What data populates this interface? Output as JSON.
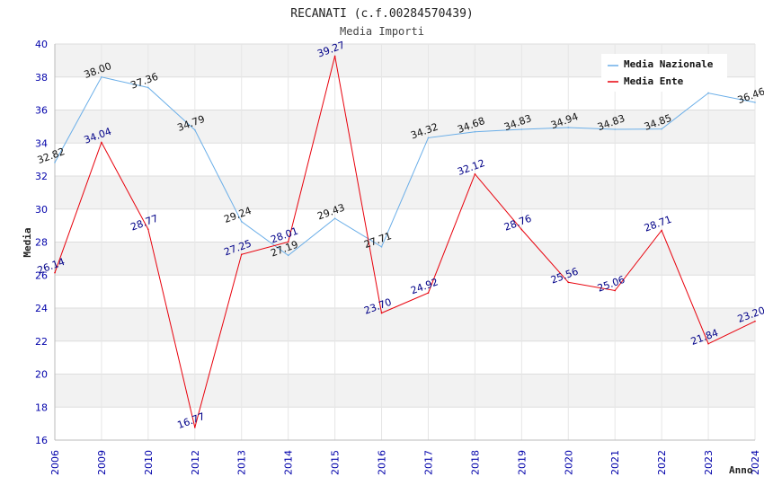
{
  "chart_data": {
    "type": "line",
    "title": "RECANATI (c.f.00284570439)",
    "subtitle": "Media Importi",
    "xlabel": "Anno",
    "ylabel": "Media",
    "ylim": [
      16,
      40
    ],
    "yticks": [
      16,
      18,
      20,
      22,
      24,
      26,
      28,
      30,
      32,
      34,
      36,
      38,
      40
    ],
    "categories": [
      "2006",
      "2009",
      "2010",
      "2012",
      "2013",
      "2014",
      "2015",
      "2016",
      "2017",
      "2018",
      "2019",
      "2020",
      "2021",
      "2022",
      "2023",
      "2024"
    ],
    "series": [
      {
        "name": "Media Nazionale",
        "color": "#6aaee8",
        "values": [
          32.82,
          38.0,
          37.36,
          34.79,
          29.24,
          27.19,
          29.43,
          27.71,
          34.32,
          34.68,
          34.83,
          34.94,
          34.83,
          34.85,
          37.03,
          36.46
        ],
        "labels": [
          "32.82",
          "38.00",
          "37.36",
          "34.79",
          "29.24",
          "27.19",
          "29.43",
          "27.71",
          "34.32",
          "34.68",
          "34.83",
          "34.94",
          "34.83",
          "34.85",
          "",
          "36.46"
        ]
      },
      {
        "name": "Media Ente",
        "color": "#e8000b",
        "values": [
          26.14,
          34.04,
          28.77,
          16.77,
          27.25,
          28.01,
          39.27,
          23.7,
          24.92,
          32.12,
          28.76,
          25.56,
          25.06,
          28.71,
          21.84,
          23.2
        ],
        "labels": [
          "26.14",
          "34.04",
          "28.77",
          "16.77",
          "27.25",
          "28.01",
          "39.27",
          "23.70",
          "24.92",
          "32.12",
          "28.76",
          "25.56",
          "25.06",
          "28.71",
          "21.84",
          "23.20"
        ]
      }
    ],
    "legend": {
      "position": "top-right"
    },
    "grid": true
  }
}
